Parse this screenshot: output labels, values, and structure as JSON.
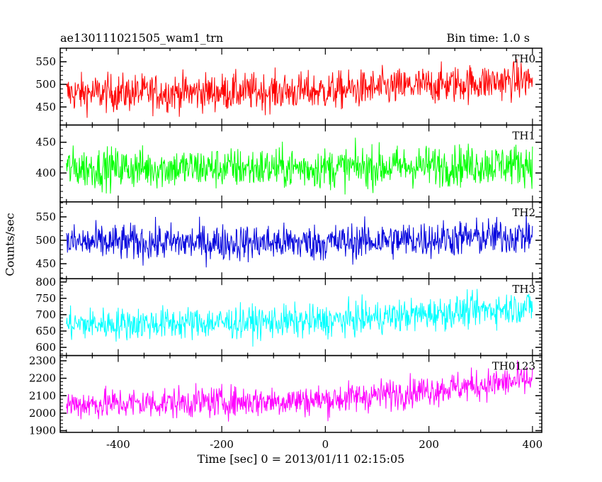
{
  "header": {
    "title_left": "ae130111021505_wam1_trn",
    "title_right": "Bin time: 1.0 s"
  },
  "axes": {
    "ylabel": "Counts/sec",
    "xlabel": "Time [sec] 0 = 2013/01/11 02:15:05"
  },
  "chart_data": {
    "type": "line",
    "x_range": [
      -500,
      400
    ],
    "xlim": [
      -512,
      418
    ],
    "x_ticks": [
      -400,
      -200,
      0,
      200,
      400
    ],
    "bin_time_sec": 1.0,
    "panels": [
      {
        "name": "TH0",
        "color": "#ff0000",
        "ylim": [
          410,
          580
        ],
        "y_ticks": [
          450,
          500,
          550
        ],
        "trend": [
          [
            -500,
            480
          ],
          [
            0,
            485
          ],
          [
            400,
            510
          ]
        ],
        "noise": 35
      },
      {
        "name": "TH1",
        "color": "#00ff00",
        "ylim": [
          353,
          478
        ],
        "y_ticks": [
          400,
          450
        ],
        "trend": [
          [
            -500,
            408
          ],
          [
            0,
            408
          ],
          [
            400,
            415
          ]
        ],
        "noise": 28
      },
      {
        "name": "TH2",
        "color": "#0000dd",
        "ylim": [
          418,
          582
        ],
        "y_ticks": [
          450,
          500,
          550
        ],
        "trend": [
          [
            -500,
            495
          ],
          [
            0,
            495
          ],
          [
            400,
            510
          ]
        ],
        "noise": 33
      },
      {
        "name": "TH3",
        "color": "#00ffff",
        "ylim": [
          575,
          810
        ],
        "y_ticks": [
          600,
          650,
          700,
          750,
          800
        ],
        "trend": [
          [
            -500,
            670
          ],
          [
            0,
            680
          ],
          [
            400,
            725
          ]
        ],
        "noise": 42
      },
      {
        "name": "TH0123",
        "color": "#ff00ff",
        "ylim": [
          1890,
          2330
        ],
        "y_ticks": [
          1900,
          2000,
          2100,
          2200,
          2300
        ],
        "trend": [
          [
            -500,
            2050
          ],
          [
            0,
            2075
          ],
          [
            400,
            2190
          ]
        ],
        "noise": 75
      }
    ]
  }
}
